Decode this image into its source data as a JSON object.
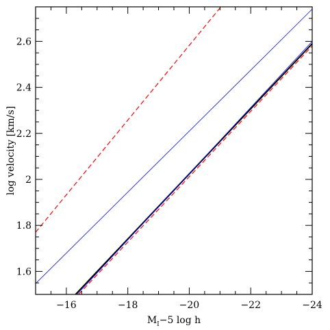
{
  "chart_data": {
    "type": "line",
    "xlabel_main": "M",
    "xlabel_sub": "I",
    "xlabel_rest": "−5 log h",
    "ylabel": "log velocity [km/s]",
    "xlim": [
      -15,
      -24
    ],
    "ylim": [
      1.5,
      2.75
    ],
    "x_ticks": [
      -16,
      -18,
      -20,
      -22,
      -24
    ],
    "x_tick_labels": [
      "−16",
      "−18",
      "−20",
      "−22",
      "−24"
    ],
    "y_ticks": [
      1.6,
      1.8,
      2.0,
      2.2,
      2.4,
      2.6
    ],
    "y_tick_labels": [
      "1.6",
      "1.8",
      "2",
      "2.2",
      "2.4",
      "2.6"
    ],
    "x_minor_step": 0.5,
    "y_minor_step": 0.05,
    "series": [
      {
        "style": "solid",
        "color": "#000000",
        "width": 2,
        "x": [
          -16.3,
          -24.0
        ],
        "y": [
          1.5,
          2.59
        ]
      },
      {
        "style": "solid",
        "color": "#0000ff",
        "width": 0.8,
        "x": [
          -15.0,
          -24.0
        ],
        "y": [
          1.547,
          2.74
        ]
      },
      {
        "style": "dashed",
        "color": "#ff0000",
        "width": 1.2,
        "x": [
          -15.0,
          -21.03
        ],
        "y": [
          1.77,
          2.75
        ]
      },
      {
        "style": "dashed",
        "color": "#ff0000",
        "width": 1.2,
        "x": [
          -16.4,
          -24.0
        ],
        "y": [
          1.5,
          2.58
        ]
      },
      {
        "style": "solid",
        "color": "#0000ff",
        "width": 0.8,
        "x": [
          -16.35,
          -24.0
        ],
        "y": [
          1.5,
          2.6
        ]
      }
    ]
  }
}
